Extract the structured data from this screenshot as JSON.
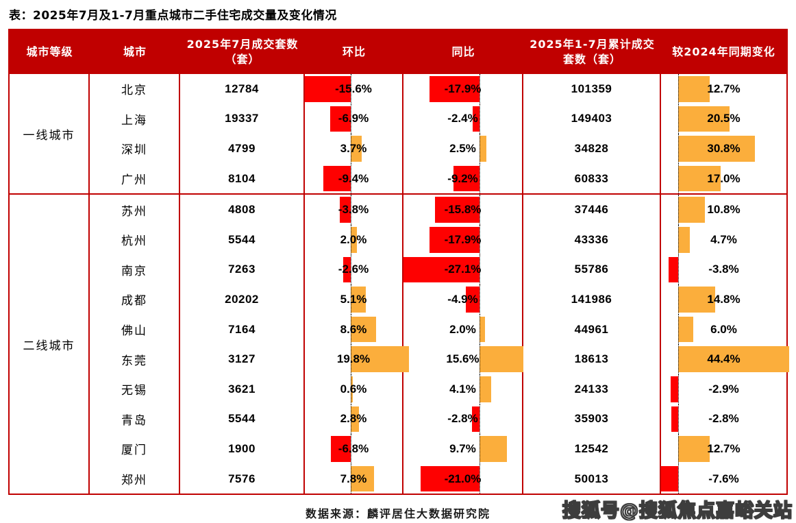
{
  "title": "表：2025年7月及1-7月重点城市二手住宅成交量及变化情况",
  "table": {
    "columns": [
      "城市等级",
      "城市",
      "2025年7月成交套数（套）",
      "环比",
      "同比",
      "2025年1-7月累计成交套数（套）",
      "较2024年同期变化"
    ],
    "groups": [
      {
        "tier": "一线城市",
        "rows": [
          {
            "city": "北京",
            "jul": "12784",
            "mom": -15.6,
            "yoy": -17.9,
            "cum": "101359",
            "cum_yoy": 12.7
          },
          {
            "city": "上海",
            "jul": "19337",
            "mom": -6.9,
            "yoy": -2.4,
            "cum": "149403",
            "cum_yoy": 20.5
          },
          {
            "city": "深圳",
            "jul": "4799",
            "mom": 3.7,
            "yoy": 2.5,
            "cum": "34828",
            "cum_yoy": 30.8
          },
          {
            "city": "广州",
            "jul": "8104",
            "mom": -9.4,
            "yoy": -9.2,
            "cum": "60833",
            "cum_yoy": 17.0
          }
        ]
      },
      {
        "tier": "二线城市",
        "rows": [
          {
            "city": "苏州",
            "jul": "4808",
            "mom": -3.8,
            "yoy": -15.8,
            "cum": "37446",
            "cum_yoy": 10.8
          },
          {
            "city": "杭州",
            "jul": "5544",
            "mom": 2.0,
            "yoy": -17.9,
            "cum": "43336",
            "cum_yoy": 4.7
          },
          {
            "city": "南京",
            "jul": "7263",
            "mom": -2.6,
            "yoy": -27.1,
            "cum": "55786",
            "cum_yoy": -3.8
          },
          {
            "city": "成都",
            "jul": "20202",
            "mom": 5.1,
            "yoy": -4.9,
            "cum": "141986",
            "cum_yoy": 14.8
          },
          {
            "city": "佛山",
            "jul": "7164",
            "mom": 8.6,
            "yoy": 2.0,
            "cum": "44961",
            "cum_yoy": 6.0
          },
          {
            "city": "东莞",
            "jul": "3127",
            "mom": 19.8,
            "yoy": 15.6,
            "cum": "18613",
            "cum_yoy": 44.4
          },
          {
            "city": "无锡",
            "jul": "3621",
            "mom": 0.6,
            "yoy": 4.1,
            "cum": "24133",
            "cum_yoy": -2.9
          },
          {
            "city": "青岛",
            "jul": "5544",
            "mom": 2.8,
            "yoy": -2.8,
            "cum": "35903",
            "cum_yoy": -2.8
          },
          {
            "city": "厦门",
            "jul": "1900",
            "mom": -6.8,
            "yoy": 9.7,
            "cum": "12542",
            "cum_yoy": 12.7
          },
          {
            "city": "郑州",
            "jul": "7576",
            "mom": 7.8,
            "yoy": -21.0,
            "cum": "50013",
            "cum_yoy": -7.6
          }
        ]
      }
    ]
  },
  "footer": {
    "source": "数据来源：麟评居住大数据研究院"
  },
  "watermark": "搜狐号@搜狐焦点嘉峪关站",
  "colors": {
    "header_bg": "#c00000",
    "border": "#c00000",
    "bar_negative": "#fe0101",
    "bar_positive": "#fbae3c"
  },
  "chart_data": {
    "type": "table",
    "title": "表：2025年7月及1-7月重点城市二手住宅成交量及变化情况",
    "columns": [
      "城市等级",
      "城市",
      "2025年7月成交套数（套）",
      "环比(%)",
      "同比(%)",
      "2025年1-7月累计成交套数（套）",
      "较2024年同期变化(%)"
    ],
    "bar_style": "in-cell horizontal bars: red = negative, orange = positive, dotted zero line",
    "rows": [
      [
        "一线城市",
        "北京",
        12784,
        -15.6,
        -17.9,
        101359,
        12.7
      ],
      [
        "一线城市",
        "上海",
        19337,
        -6.9,
        -2.4,
        149403,
        20.5
      ],
      [
        "一线城市",
        "深圳",
        4799,
        3.7,
        2.5,
        34828,
        30.8
      ],
      [
        "一线城市",
        "广州",
        8104,
        -9.4,
        -9.2,
        60833,
        17.0
      ],
      [
        "二线城市",
        "苏州",
        4808,
        -3.8,
        -15.8,
        37446,
        10.8
      ],
      [
        "二线城市",
        "杭州",
        5544,
        2.0,
        -17.9,
        43336,
        4.7
      ],
      [
        "二线城市",
        "南京",
        7263,
        -2.6,
        -27.1,
        55786,
        -3.8
      ],
      [
        "二线城市",
        "成都",
        20202,
        5.1,
        -4.9,
        141986,
        14.8
      ],
      [
        "二线城市",
        "佛山",
        7164,
        8.6,
        2.0,
        44961,
        6.0
      ],
      [
        "二线城市",
        "东莞",
        3127,
        19.8,
        15.6,
        18613,
        44.4
      ],
      [
        "二线城市",
        "无锡",
        3621,
        0.6,
        4.1,
        24133,
        -2.9
      ],
      [
        "二线城市",
        "青岛",
        5544,
        2.8,
        -2.8,
        35903,
        -2.8
      ],
      [
        "二线城市",
        "厦门",
        1900,
        -6.8,
        9.7,
        12542,
        12.7
      ],
      [
        "二线城市",
        "郑州",
        7576,
        7.8,
        -21.0,
        50013,
        -7.6
      ]
    ],
    "source": "数据来源：麟评居住大数据研究院"
  }
}
